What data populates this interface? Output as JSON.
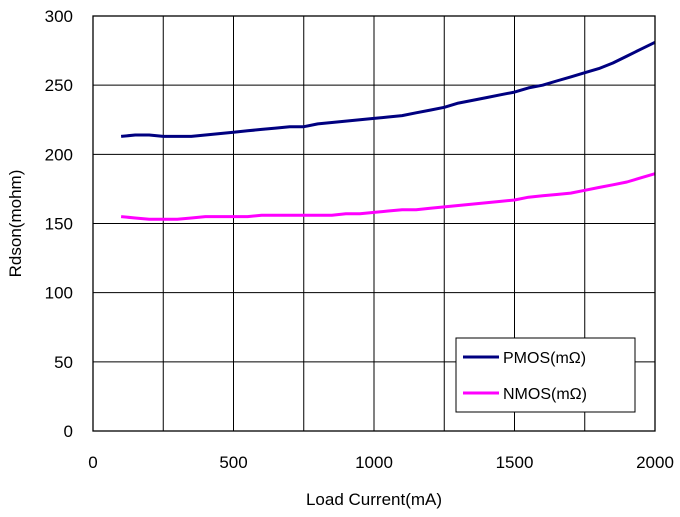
{
  "chart_data": {
    "type": "line",
    "title": "",
    "xlabel": "Load Current(mA)",
    "ylabel": "Rdson(mohm)",
    "xlim": [
      0,
      2000
    ],
    "ylim": [
      0,
      300
    ],
    "xticks": [
      0,
      500,
      1000,
      1500,
      2000
    ],
    "yticks": [
      0,
      50,
      100,
      150,
      200,
      250,
      300
    ],
    "xtick_labels": [
      "0",
      "500",
      "1000",
      "1500",
      "2000"
    ],
    "ytick_labels": [
      "0",
      "50",
      "100",
      "150",
      "200",
      "250",
      "300"
    ],
    "grid": true,
    "legend_position": "bottom-right",
    "series": [
      {
        "name": "PMOS(mΩ)",
        "color": "#000080",
        "x": [
          100,
          150,
          200,
          250,
          300,
          350,
          400,
          450,
          500,
          550,
          600,
          650,
          700,
          750,
          800,
          850,
          900,
          950,
          1000,
          1050,
          1100,
          1150,
          1200,
          1250,
          1300,
          1350,
          1400,
          1450,
          1500,
          1550,
          1600,
          1650,
          1700,
          1750,
          1800,
          1850,
          1900,
          1950,
          2000
        ],
        "y": [
          213,
          214,
          214,
          213,
          213,
          213,
          214,
          215,
          216,
          217,
          218,
          219,
          220,
          220,
          222,
          223,
          224,
          225,
          226,
          227,
          228,
          230,
          232,
          234,
          237,
          239,
          241,
          243,
          245,
          248,
          250,
          253,
          256,
          259,
          262,
          266,
          271,
          276,
          281
        ]
      },
      {
        "name": "NMOS(mΩ)",
        "color": "#ff00ff",
        "x": [
          100,
          150,
          200,
          250,
          300,
          350,
          400,
          450,
          500,
          550,
          600,
          650,
          700,
          750,
          800,
          850,
          900,
          950,
          1000,
          1050,
          1100,
          1150,
          1200,
          1250,
          1300,
          1350,
          1400,
          1450,
          1500,
          1550,
          1600,
          1650,
          1700,
          1750,
          1800,
          1850,
          1900,
          1950,
          2000
        ],
        "y": [
          155,
          154,
          153,
          153,
          153,
          154,
          155,
          155,
          155,
          155,
          156,
          156,
          156,
          156,
          156,
          156,
          157,
          157,
          158,
          159,
          160,
          160,
          161,
          162,
          163,
          164,
          165,
          166,
          167,
          169,
          170,
          171,
          172,
          174,
          176,
          178,
          180,
          183,
          186
        ]
      }
    ]
  }
}
